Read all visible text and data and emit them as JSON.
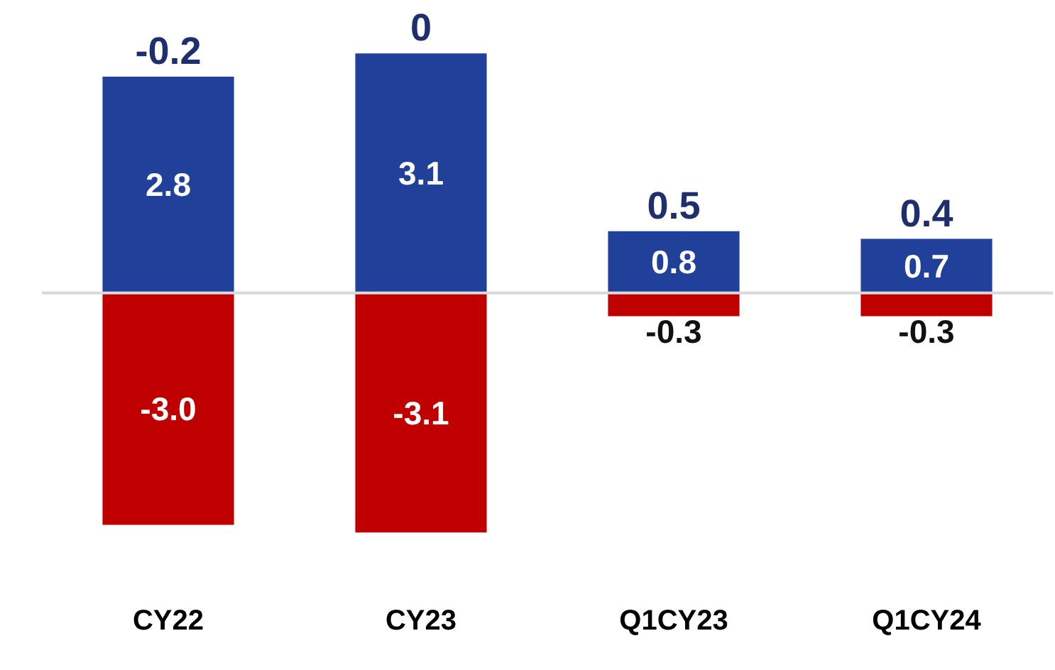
{
  "chart_data": {
    "type": "bar",
    "stacked": true,
    "categories": [
      "CY22",
      "CY23",
      "Q1CY23",
      "Q1CY24"
    ],
    "series": [
      {
        "color": "#20409a",
        "values": [
          2.8,
          3.1,
          0.8,
          0.7
        ],
        "value_labels": [
          "2.8",
          "3.1",
          "0.8",
          "0.7"
        ]
      },
      {
        "color": "#c00000",
        "values": [
          -3.0,
          -3.1,
          -0.3,
          -0.3
        ],
        "value_labels": [
          "-3.0",
          "-3.1",
          "-0.3",
          "-0.3"
        ]
      }
    ],
    "totals": [
      "-0.2",
      "0",
      "0.5",
      "0.4"
    ],
    "tick_labels": "x"
  }
}
